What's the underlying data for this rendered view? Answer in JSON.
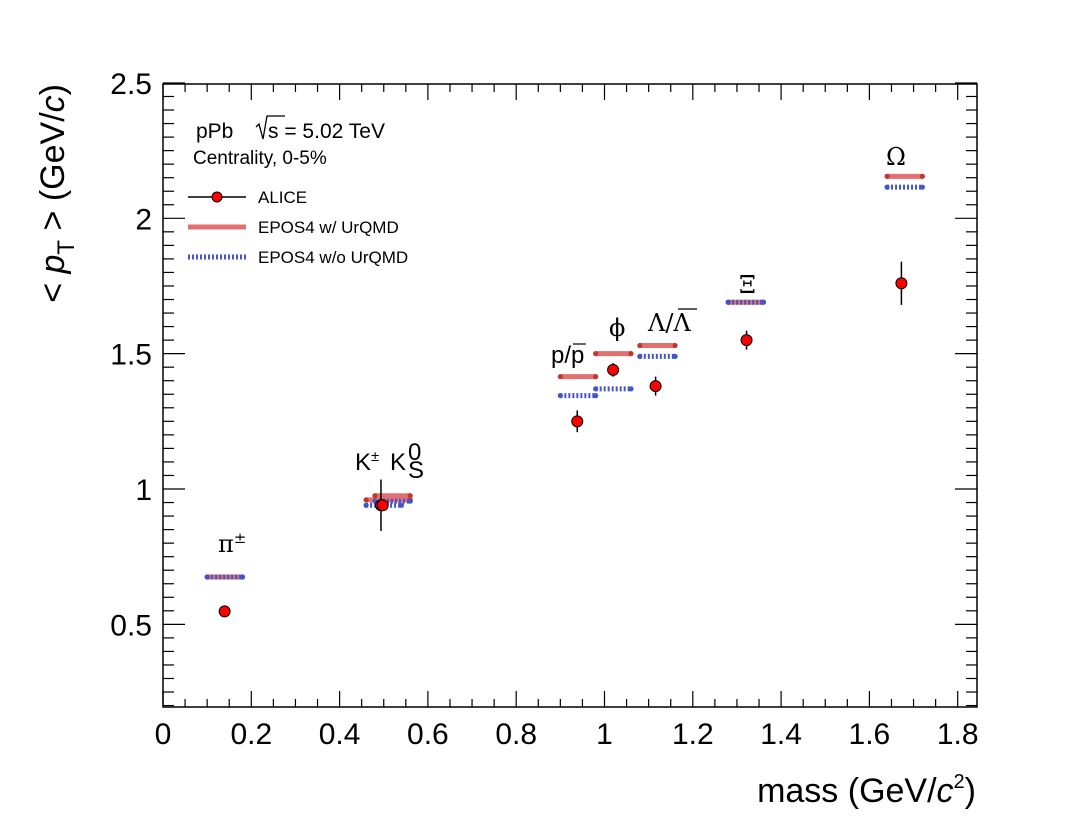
{
  "chart_data": {
    "type": "scatter",
    "title": "",
    "xlabel": "mass (GeV/c²)",
    "xlabel_parts": {
      "main": "mass (GeV/",
      "c": "c",
      "sup": "2",
      "close": ")"
    },
    "ylabel_parts": {
      "open": "< ",
      "p": "p",
      "sub": "T",
      "mid": " > (GeV/",
      "c": "c",
      "close": ")"
    },
    "xlim": [
      0,
      1.85
    ],
    "ylim": [
      0.2,
      2.5
    ],
    "x_ticks": [
      "0",
      "0.2",
      "0.4",
      "0.6",
      "0.8",
      "1",
      "1.2",
      "1.4",
      "1.6",
      "1.8"
    ],
    "y_ticks": [
      "0.5",
      "1",
      "1.5",
      "2",
      "2.5"
    ],
    "annotation": {
      "system": "pPb",
      "sqrt_s_label": "s = 5.02 TeV",
      "centrality": "Centrality, 0-5%"
    },
    "legend": {
      "position": "top-left",
      "entries": [
        "ALICE",
        "EPOS4 w/ UrQMD",
        "EPOS4 w/o UrQMD"
      ]
    },
    "series": [
      {
        "name": "ALICE",
        "marker": "circle",
        "color": "#ff0000",
        "points": [
          {
            "particle": "pi",
            "x": 0.1396,
            "y": 0.548,
            "err": 0.01
          },
          {
            "particle": "K+-",
            "x": 0.4937,
            "y": 0.94,
            "err": 0.095
          },
          {
            "particle": "K0S",
            "x": 0.4976,
            "y": 0.94,
            "err": 0.02
          },
          {
            "particle": "p",
            "x": 0.9383,
            "y": 1.25,
            "err": 0.04
          },
          {
            "particle": "phi",
            "x": 1.0195,
            "y": 1.44,
            "err": 0.025
          },
          {
            "particle": "Lambda",
            "x": 1.1157,
            "y": 1.38,
            "err": 0.035
          },
          {
            "particle": "Xi",
            "x": 1.3217,
            "y": 1.55,
            "err": 0.035
          },
          {
            "particle": "Omega",
            "x": 1.6725,
            "y": 1.76,
            "err": 0.08
          }
        ]
      },
      {
        "name": "EPOS4 w/ UrQMD",
        "marker": "band",
        "color": "#e27070",
        "points": [
          {
            "particle": "pi",
            "x_range": [
              0.1,
              0.18
            ],
            "y": 0.675
          },
          {
            "particle": "K",
            "x_range": [
              0.46,
              0.56
            ],
            "y": 0.96
          },
          {
            "particle": "K",
            "x_range": [
              0.48,
              0.56
            ],
            "y": 0.975
          },
          {
            "particle": "p",
            "x_range": [
              0.9,
              0.98
            ],
            "y": 1.415
          },
          {
            "particle": "phi",
            "x_range": [
              0.98,
              1.06
            ],
            "y": 1.5
          },
          {
            "particle": "Lambda",
            "x_range": [
              1.08,
              1.16
            ],
            "y": 1.53
          },
          {
            "particle": "Xi",
            "x_range": [
              1.28,
              1.36
            ],
            "y": 1.69
          },
          {
            "particle": "Omega",
            "x_range": [
              1.64,
              1.72
            ],
            "y": 2.155
          }
        ]
      },
      {
        "name": "EPOS4 w/o UrQMD",
        "marker": "dotted-band",
        "color": "#4455cc",
        "points": [
          {
            "particle": "pi",
            "x_range": [
              0.1,
              0.18
            ],
            "y": 0.675
          },
          {
            "particle": "K",
            "x_range": [
              0.46,
              0.54
            ],
            "y": 0.94
          },
          {
            "particle": "K",
            "x_range": [
              0.48,
              0.56
            ],
            "y": 0.955
          },
          {
            "particle": "p",
            "x_range": [
              0.9,
              0.98
            ],
            "y": 1.345
          },
          {
            "particle": "phi",
            "x_range": [
              0.98,
              1.06
            ],
            "y": 1.37
          },
          {
            "particle": "Lambda",
            "x_range": [
              1.08,
              1.16
            ],
            "y": 1.49
          },
          {
            "particle": "Xi",
            "x_range": [
              1.28,
              1.36
            ],
            "y": 1.69
          },
          {
            "particle": "Omega",
            "x_range": [
              1.64,
              1.72
            ],
            "y": 2.115
          }
        ]
      }
    ],
    "particle_labels": {
      "pion": "π",
      "pion_sup": "±",
      "kaon": "K",
      "kaon_sup": "±",
      "kshort": "K",
      "kshort_sup": "0",
      "kshort_sub": "S",
      "proton": "p/p",
      "phi": "ϕ",
      "lambda": "Λ/Λ",
      "xi": "Ξ",
      "omega": "Ω"
    },
    "colors": {
      "alice": "#ff0000",
      "with_urqmd": "#e27070",
      "without_urqmd": "#4455cc"
    }
  }
}
